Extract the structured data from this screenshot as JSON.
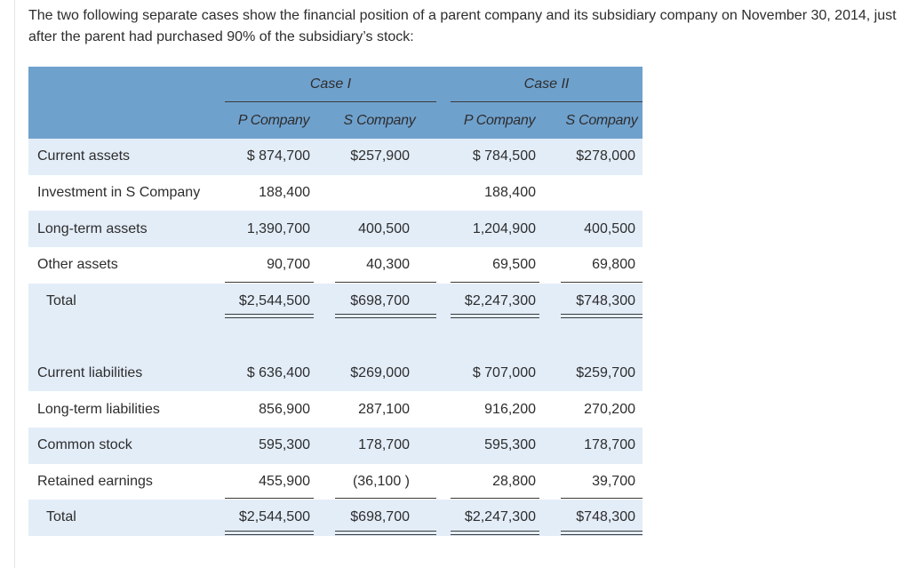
{
  "intro": "The two following separate cases show the financial position of a parent company and its subsidiary company on November 30, 2014, just after the parent had purchased 90% of the subsidiary’s stock:",
  "header": {
    "case1": "Case I",
    "case2": "Case II",
    "columns": [
      "P Company",
      "S Company",
      "P Company",
      "S Company"
    ]
  },
  "rows": [
    {
      "label": "Current assets",
      "values": [
        "$ 874,700",
        "$257,900",
        "$ 784,500",
        "$278,000"
      ]
    },
    {
      "label": "Investment in S Company",
      "values": [
        "188,400",
        "",
        "188,400",
        ""
      ]
    },
    {
      "label": "Long-term assets",
      "values": [
        "1,390,700",
        "400,500",
        "1,204,900",
        "400,500"
      ]
    },
    {
      "label": "Other assets",
      "values": [
        "90,700",
        "40,300",
        "69,500",
        "69,800"
      ]
    },
    {
      "label": "Total",
      "values": [
        "$2,544,500",
        "$698,700",
        "$2,247,300",
        "$748,300"
      ]
    },
    {
      "label": "",
      "values": [
        "",
        "",
        "",
        ""
      ]
    },
    {
      "label": "Current liabilities",
      "values": [
        "$ 636,400",
        "$269,000",
        "$ 707,000",
        "$259,700"
      ]
    },
    {
      "label": "Long-term liabilities",
      "values": [
        "856,900",
        "287,100",
        "916,200",
        "270,200"
      ]
    },
    {
      "label": "Common stock",
      "values": [
        "595,300",
        "178,700",
        "595,300",
        "178,700"
      ]
    },
    {
      "label": "Retained earnings",
      "values": [
        "455,900",
        "(36,100 )",
        "28,800",
        "39,700"
      ]
    },
    {
      "label": "Total",
      "values": [
        "$2,544,500",
        "$698,700",
        "$2,247,300",
        "$748,300"
      ]
    }
  ]
}
